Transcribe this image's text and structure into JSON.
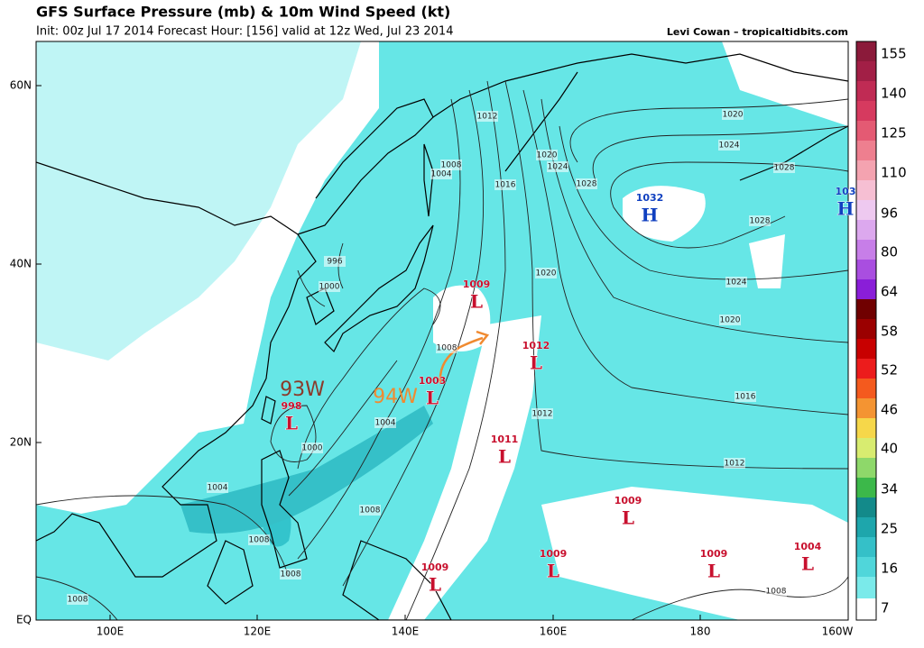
{
  "header": {
    "title": "GFS Surface Pressure (mb) & 10m Wind Speed (kt)",
    "subtitle": "Init: 00z Jul 17 2014 Forecast Hour: [156] valid at 12z Wed, Jul 23 2014",
    "credit": "Levi Cowan – tropicaltidbits.com"
  },
  "map": {
    "lat_labels": [
      "60N",
      "40N",
      "20N",
      "EQ"
    ],
    "lon_labels": [
      "100E",
      "120E",
      "140E",
      "160E",
      "180",
      "160W"
    ],
    "centers": [
      {
        "value": "1032",
        "type": "H"
      },
      {
        "value": "103",
        "type": "H"
      },
      {
        "value": "1009",
        "type": "L"
      },
      {
        "value": "1012",
        "type": "L"
      },
      {
        "value": "1003",
        "type": "L"
      },
      {
        "value": "998",
        "type": "L"
      },
      {
        "value": "1011",
        "type": "L"
      },
      {
        "value": "1009",
        "type": "L"
      },
      {
        "value": "1009",
        "type": "L"
      },
      {
        "value": "1009",
        "type": "L"
      },
      {
        "value": "1009",
        "type": "L"
      },
      {
        "value": "1004",
        "type": "L"
      }
    ],
    "storm_labels": [
      "93W",
      "94W"
    ],
    "contour_labels": [
      "1012",
      "1020",
      "1024",
      "1028",
      "1028",
      "1028",
      "1024",
      "1020",
      "1016",
      "1012",
      "1020",
      "1024",
      "1016",
      "1020",
      "1012",
      "1008",
      "1004",
      "996",
      "1000",
      "1008",
      "1004",
      "1000",
      "1004",
      "1008",
      "1008",
      "1008",
      "1008",
      "1008"
    ]
  },
  "colorbar": {
    "ticks": [
      155,
      140,
      125,
      110,
      96,
      80,
      64,
      58,
      52,
      46,
      40,
      34,
      25,
      16,
      7
    ]
  }
}
